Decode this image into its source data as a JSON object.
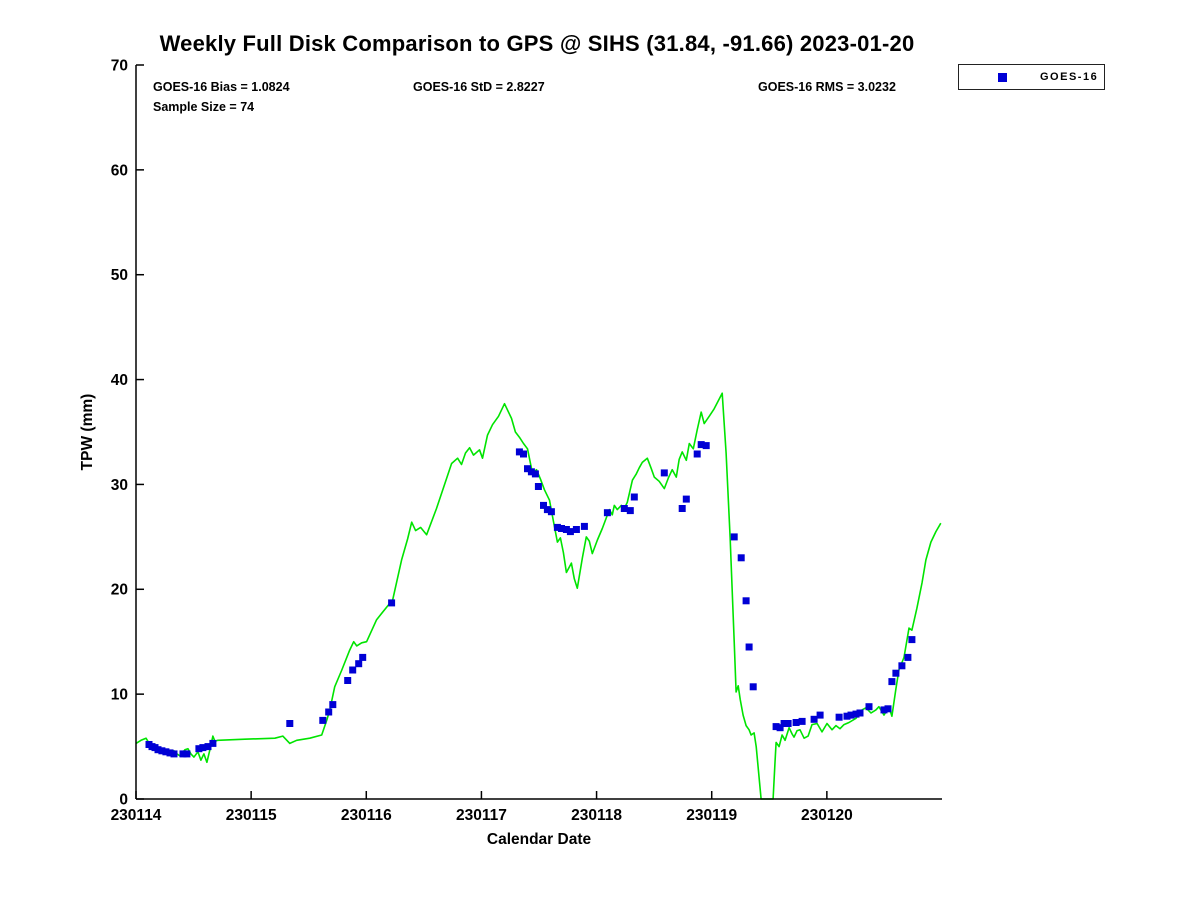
{
  "title": "Weekly Full Disk Comparison to GPS @ SIHS (31.84, -91.66) 2023-01-20",
  "annotations": {
    "bias": "GOES-16 Bias = 1.0824",
    "std": "GOES-16 StD = 2.8227",
    "rms": "GOES-16 RMS = 3.0232",
    "sample_size": "Sample Size = 74"
  },
  "legend": {
    "items": [
      {
        "label": "GOES-16",
        "marker": "square",
        "color": "#0000D5"
      }
    ]
  },
  "colors": {
    "background": "#FFFFFF",
    "axis": "#000000",
    "gps_line": "#00E400",
    "goes16_marker": "#0000D5"
  },
  "chart_data": {
    "type": "line+scatter",
    "title": "Weekly Full Disk Comparison to GPS @ SIHS (31.84, -91.66) 2023-01-20",
    "xlabel": "Calendar Date",
    "ylabel": "TPW (mm)",
    "x_unit": "days since 230114",
    "xlim_days": [
      0,
      7
    ],
    "ylim": [
      0,
      70
    ],
    "xtick_days": [
      0,
      1,
      2,
      3,
      4,
      5,
      6
    ],
    "xtick_labels": [
      "230114",
      "230115",
      "230116",
      "230117",
      "230118",
      "230119",
      "230120"
    ],
    "ytick_values": [
      0,
      10,
      20,
      30,
      40,
      50,
      60,
      70
    ],
    "grid": false,
    "legend_position": "top-right-outside",
    "series": [
      {
        "name": "GPS",
        "type": "line",
        "color": "#00E400",
        "points_day_tpw": [
          [
            0.0,
            5.3
          ],
          [
            0.043,
            5.6
          ],
          [
            0.087,
            5.8
          ],
          [
            0.121,
            5.2
          ],
          [
            0.156,
            4.8
          ],
          [
            0.191,
            4.6
          ],
          [
            0.217,
            4.8
          ],
          [
            0.252,
            4.5
          ],
          [
            0.295,
            4.3
          ],
          [
            0.33,
            4.6
          ],
          [
            0.356,
            4.3
          ],
          [
            0.382,
            4.1
          ],
          [
            0.425,
            4.7
          ],
          [
            0.451,
            4.8
          ],
          [
            0.477,
            4.3
          ],
          [
            0.503,
            4.0
          ],
          [
            0.538,
            4.5
          ],
          [
            0.564,
            3.7
          ],
          [
            0.59,
            4.3
          ],
          [
            0.616,
            3.5
          ],
          [
            0.642,
            4.7
          ],
          [
            0.668,
            6.0
          ],
          [
            0.685,
            5.5
          ],
          [
            0.711,
            5.6
          ],
          [
            0.945,
            5.7
          ],
          [
            1.206,
            5.8
          ],
          [
            1.275,
            6.0
          ],
          [
            1.336,
            5.3
          ],
          [
            1.396,
            5.6
          ],
          [
            1.509,
            5.8
          ],
          [
            1.613,
            6.1
          ],
          [
            1.656,
            7.5
          ],
          [
            1.683,
            8.5
          ],
          [
            1.726,
            10.7
          ],
          [
            1.787,
            12.3
          ],
          [
            1.856,
            14.2
          ],
          [
            1.891,
            15.0
          ],
          [
            1.917,
            14.6
          ],
          [
            1.96,
            14.9
          ],
          [
            2.003,
            15.0
          ],
          [
            2.09,
            17.1
          ],
          [
            2.177,
            18.3
          ],
          [
            2.229,
            19.0
          ],
          [
            2.307,
            22.8
          ],
          [
            2.359,
            24.8
          ],
          [
            2.394,
            26.4
          ],
          [
            2.428,
            25.6
          ],
          [
            2.472,
            25.9
          ],
          [
            2.524,
            25.2
          ],
          [
            2.61,
            27.7
          ],
          [
            2.68,
            30.0
          ],
          [
            2.741,
            32.0
          ],
          [
            2.793,
            32.5
          ],
          [
            2.827,
            31.9
          ],
          [
            2.862,
            33.0
          ],
          [
            2.897,
            33.5
          ],
          [
            2.931,
            32.8
          ],
          [
            2.983,
            33.3
          ],
          [
            3.009,
            32.5
          ],
          [
            3.053,
            34.7
          ],
          [
            3.096,
            35.7
          ],
          [
            3.148,
            36.5
          ],
          [
            3.2,
            37.7
          ],
          [
            3.261,
            36.3
          ],
          [
            3.295,
            35.0
          ],
          [
            3.33,
            34.5
          ],
          [
            3.365,
            33.9
          ],
          [
            3.4,
            33.4
          ],
          [
            3.443,
            31.1
          ],
          [
            3.478,
            31.4
          ],
          [
            3.513,
            30.5
          ],
          [
            3.547,
            29.5
          ],
          [
            3.591,
            28.5
          ],
          [
            3.625,
            26.5
          ],
          [
            3.66,
            24.5
          ],
          [
            3.686,
            24.9
          ],
          [
            3.712,
            23.5
          ],
          [
            3.738,
            21.6
          ],
          [
            3.781,
            22.5
          ],
          [
            3.807,
            21.0
          ],
          [
            3.833,
            20.1
          ],
          [
            3.877,
            23.0
          ],
          [
            3.911,
            25.0
          ],
          [
            3.937,
            24.6
          ],
          [
            3.963,
            23.4
          ],
          [
            4.007,
            24.7
          ],
          [
            4.05,
            25.8
          ],
          [
            4.111,
            27.6
          ],
          [
            4.137,
            27.1
          ],
          [
            4.154,
            28.0
          ],
          [
            4.18,
            27.6
          ],
          [
            4.215,
            28.0
          ],
          [
            4.241,
            27.7
          ],
          [
            4.267,
            28.3
          ],
          [
            4.311,
            30.4
          ],
          [
            4.345,
            31.0
          ],
          [
            4.371,
            31.6
          ],
          [
            4.397,
            32.1
          ],
          [
            4.441,
            32.5
          ],
          [
            4.475,
            31.5
          ],
          [
            4.501,
            30.7
          ],
          [
            4.544,
            30.3
          ],
          [
            4.588,
            29.6
          ],
          [
            4.623,
            30.6
          ],
          [
            4.657,
            31.4
          ],
          [
            4.692,
            30.7
          ],
          [
            4.718,
            32.4
          ],
          [
            4.744,
            33.1
          ],
          [
            4.779,
            32.3
          ],
          [
            4.805,
            33.9
          ],
          [
            4.84,
            33.4
          ],
          [
            4.874,
            35.2
          ],
          [
            4.909,
            36.9
          ],
          [
            4.935,
            35.8
          ],
          [
            4.978,
            36.5
          ],
          [
            5.021,
            37.2
          ],
          [
            5.091,
            38.7
          ],
          [
            5.125,
            33.0
          ],
          [
            5.16,
            25.0
          ],
          [
            5.195,
            15.0
          ],
          [
            5.212,
            10.2
          ],
          [
            5.23,
            10.8
          ],
          [
            5.247,
            9.5
          ],
          [
            5.273,
            8.0
          ],
          [
            5.299,
            7.0
          ],
          [
            5.325,
            6.6
          ],
          [
            5.342,
            6.1
          ],
          [
            5.368,
            6.3
          ],
          [
            5.386,
            5.0
          ],
          [
            5.429,
            0.0
          ],
          [
            5.533,
            0.0
          ],
          [
            5.55,
            3.5
          ],
          [
            5.559,
            5.4
          ],
          [
            5.585,
            5.0
          ],
          [
            5.611,
            6.1
          ],
          [
            5.637,
            5.6
          ],
          [
            5.672,
            6.8
          ],
          [
            5.698,
            6.2
          ],
          [
            5.715,
            5.9
          ],
          [
            5.741,
            6.5
          ],
          [
            5.767,
            6.6
          ],
          [
            5.802,
            5.8
          ],
          [
            5.837,
            6.0
          ],
          [
            5.871,
            7.1
          ],
          [
            5.915,
            7.2
          ],
          [
            5.958,
            6.4
          ],
          [
            6.001,
            7.2
          ],
          [
            6.045,
            6.6
          ],
          [
            6.079,
            7.0
          ],
          [
            6.114,
            6.7
          ],
          [
            6.149,
            7.1
          ],
          [
            6.192,
            7.3
          ],
          [
            6.253,
            7.7
          ],
          [
            6.305,
            8.5
          ],
          [
            6.339,
            8.7
          ],
          [
            6.383,
            8.2
          ],
          [
            6.426,
            8.5
          ],
          [
            6.452,
            8.8
          ],
          [
            6.496,
            8.0
          ],
          [
            6.539,
            8.8
          ],
          [
            6.565,
            7.9
          ],
          [
            6.6,
            10.5
          ],
          [
            6.626,
            12.3
          ],
          [
            6.67,
            13.5
          ],
          [
            6.713,
            16.3
          ],
          [
            6.739,
            16.1
          ],
          [
            6.782,
            18.2
          ],
          [
            6.826,
            20.6
          ],
          [
            6.86,
            22.8
          ],
          [
            6.904,
            24.5
          ],
          [
            6.947,
            25.5
          ],
          [
            6.99,
            26.3
          ]
        ]
      },
      {
        "name": "GOES-16",
        "type": "scatter",
        "marker": "square",
        "color": "#0000D5",
        "points_day_tpw": [
          [
            0.113,
            5.2
          ],
          [
            0.139,
            5.0
          ],
          [
            0.165,
            4.9
          ],
          [
            0.191,
            4.7
          ],
          [
            0.225,
            4.6
          ],
          [
            0.26,
            4.5
          ],
          [
            0.295,
            4.4
          ],
          [
            0.33,
            4.3
          ],
          [
            0.408,
            4.3
          ],
          [
            0.442,
            4.3
          ],
          [
            0.546,
            4.8
          ],
          [
            0.581,
            4.9
          ],
          [
            0.625,
            5.0
          ],
          [
            0.668,
            5.3
          ],
          [
            1.336,
            7.2
          ],
          [
            1.622,
            7.5
          ],
          [
            1.674,
            8.3
          ],
          [
            1.709,
            9.0
          ],
          [
            1.839,
            11.3
          ],
          [
            1.882,
            12.3
          ],
          [
            1.934,
            12.9
          ],
          [
            1.969,
            13.5
          ],
          [
            2.22,
            18.7
          ],
          [
            3.33,
            33.1
          ],
          [
            3.365,
            32.9
          ],
          [
            3.4,
            31.5
          ],
          [
            3.434,
            31.2
          ],
          [
            3.469,
            31.0
          ],
          [
            3.495,
            29.8
          ],
          [
            3.539,
            28.0
          ],
          [
            3.573,
            27.6
          ],
          [
            3.608,
            27.4
          ],
          [
            3.66,
            25.9
          ],
          [
            3.695,
            25.8
          ],
          [
            3.738,
            25.7
          ],
          [
            3.773,
            25.5
          ],
          [
            3.825,
            25.7
          ],
          [
            3.894,
            26.0
          ],
          [
            4.094,
            27.3
          ],
          [
            4.241,
            27.7
          ],
          [
            4.293,
            27.5
          ],
          [
            4.328,
            28.8
          ],
          [
            4.588,
            31.1
          ],
          [
            4.744,
            27.7
          ],
          [
            4.779,
            28.6
          ],
          [
            4.874,
            32.9
          ],
          [
            4.909,
            33.8
          ],
          [
            4.952,
            33.7
          ],
          [
            5.195,
            25.0
          ],
          [
            5.256,
            23.0
          ],
          [
            5.299,
            18.9
          ],
          [
            5.325,
            14.5
          ],
          [
            5.36,
            10.7
          ],
          [
            5.559,
            6.9
          ],
          [
            5.594,
            6.8
          ],
          [
            5.629,
            7.2
          ],
          [
            5.663,
            7.2
          ],
          [
            5.733,
            7.3
          ],
          [
            5.785,
            7.4
          ],
          [
            5.889,
            7.6
          ],
          [
            5.941,
            8.0
          ],
          [
            6.106,
            7.8
          ],
          [
            6.175,
            7.9
          ],
          [
            6.21,
            8.0
          ],
          [
            6.253,
            8.1
          ],
          [
            6.288,
            8.2
          ],
          [
            6.366,
            8.8
          ],
          [
            6.496,
            8.5
          ],
          [
            6.531,
            8.6
          ],
          [
            6.565,
            11.2
          ],
          [
            6.6,
            12.0
          ],
          [
            6.652,
            12.7
          ],
          [
            6.704,
            13.5
          ],
          [
            6.739,
            15.2
          ]
        ]
      }
    ]
  }
}
